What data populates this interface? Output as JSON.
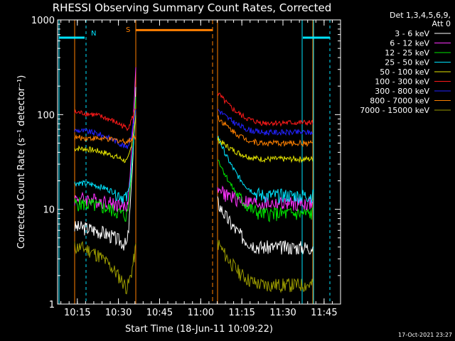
{
  "chart_data": {
    "type": "line",
    "title": "RHESSI Observing Summary Count Rates, Corrected",
    "xlabel": "Start Time (18-Jun-11 10:09:22)",
    "ylabel": "Corrected Count Rate (s⁻¹ detector⁻¹)",
    "yscale": "log",
    "ylim": [
      1,
      1000
    ],
    "y_ticks": [
      {
        "value": 1,
        "label": "1"
      },
      {
        "value": 10,
        "label": "10"
      },
      {
        "value": 100,
        "label": "100"
      },
      {
        "value": 1000,
        "label": "1000"
      }
    ],
    "xlim_minutes": [
      10.13,
      11.85
    ],
    "x_ticks": [
      {
        "value": 10.25,
        "label": "10:15"
      },
      {
        "value": 10.5,
        "label": "10:30"
      },
      {
        "value": 10.75,
        "label": "10:45"
      },
      {
        "value": 11.0,
        "label": "11:00"
      },
      {
        "value": 11.25,
        "label": "11:15"
      },
      {
        "value": 11.5,
        "label": "11:30"
      },
      {
        "value": 11.75,
        "label": "11:45"
      }
    ],
    "legend_header": [
      "Det 1,3,4,5,6,9,",
      "Att 0"
    ],
    "legend_position": "right",
    "timestamp": "17-Oct-2021 23:27",
    "flags": [
      {
        "label": "N",
        "color": "#00e5ff",
        "value": 650
      },
      {
        "label": "S",
        "color": "#ff8000",
        "value": 780
      }
    ],
    "series": [
      {
        "name": "3 - 6 keV",
        "color": "#ffffff",
        "seg1": [
          6.5,
          5.0,
          4.2,
          190
        ],
        "seg2": [
          12,
          6.0,
          4.0,
          4.0
        ]
      },
      {
        "name": "6 - 12 keV",
        "color": "#ff33ff",
        "seg1": [
          13,
          11.5,
          10.5,
          330
        ],
        "seg2": [
          16,
          12.5,
          11.5,
          11.5
        ]
      },
      {
        "name": "12 - 25 keV",
        "color": "#00e600",
        "seg1": [
          11.5,
          9.5,
          8.5,
          150
        ],
        "seg2": [
          35,
          12,
          9.0,
          9.0
        ]
      },
      {
        "name": "25 - 50 keV",
        "color": "#00e5ff",
        "seg1": [
          19,
          16,
          13,
          100
        ],
        "seg2": [
          60,
          16,
          14,
          14
        ]
      },
      {
        "name": "50 - 100 keV",
        "color": "#e6e600",
        "seg1": [
          44,
          38,
          32,
          95
        ],
        "seg2": [
          55,
          40,
          34,
          34
        ]
      },
      {
        "name": "100 - 300 keV",
        "color": "#ff1a1a",
        "seg1": [
          105,
          92,
          72,
          120
        ],
        "seg2": [
          170,
          110,
          82,
          82
        ]
      },
      {
        "name": "300 - 800 keV",
        "color": "#2222ff",
        "seg1": [
          68,
          58,
          45,
          110
        ],
        "seg2": [
          115,
          80,
          65,
          65
        ]
      },
      {
        "name": "800 - 7000 keV",
        "color": "#ff8000",
        "seg1": [
          57,
          54,
          52,
          60
        ],
        "seg2": [
          95,
          60,
          50,
          50
        ]
      },
      {
        "name": "7000 - 15000 keV",
        "color": "#999900",
        "seg1": [
          4.0,
          2.5,
          1.5,
          4.0
        ],
        "seg2": [
          4.5,
          2.5,
          1.6,
          1.6
        ]
      }
    ]
  }
}
